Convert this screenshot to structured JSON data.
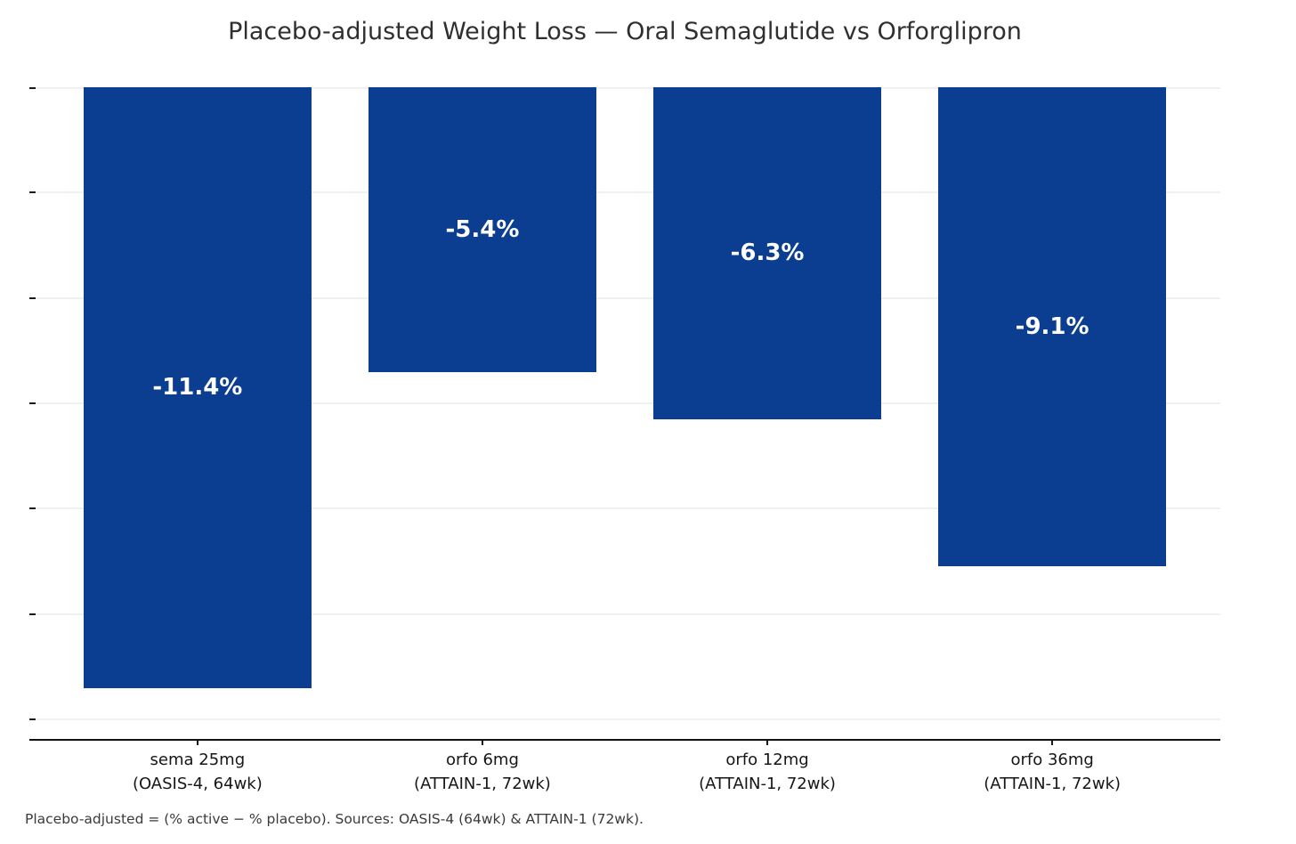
{
  "chart_data": {
    "type": "bar",
    "title": "Placebo-adjusted Weight Loss — Oral Semaglutide vs Orforglipron",
    "footnote": "Placebo-adjusted = (% active − % placebo). Sources: OASIS-4 (64wk) & ATTAIN-1 (72wk).",
    "categories": [
      "sema 25mg\n(OASIS-4, 64wk)",
      "orfo 6mg\n(ATTAIN-1, 72wk)",
      "orfo 12mg\n(ATTAIN-1, 72wk)",
      "orfo 36mg\n(ATTAIN-1, 72wk)"
    ],
    "values": [
      -11.4,
      -5.4,
      -6.3,
      -9.1
    ],
    "data_labels": [
      "-11.4%",
      "-5.4%",
      "-6.3%",
      "-9.1%"
    ],
    "xlabel": "",
    "ylabel": "",
    "ylim": [
      -12.37,
      0
    ],
    "yticks": [
      0,
      -2,
      -4,
      -6,
      -8,
      -10,
      -12
    ],
    "ytick_labels_visible": false,
    "grid": "horizontal",
    "legend": "none",
    "bar_color": "#0b3d91",
    "data_label_color": "#ffffff"
  }
}
